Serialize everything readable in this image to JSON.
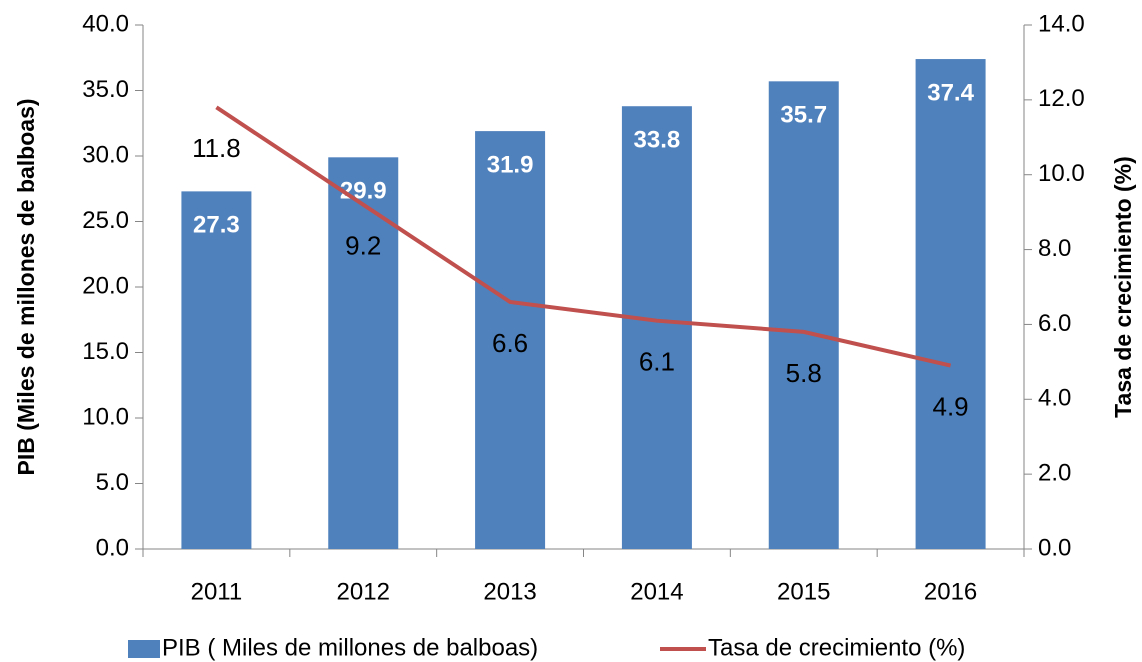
{
  "chart_data": {
    "type": "bar_line",
    "categories": [
      "2011",
      "2012",
      "2013",
      "2014",
      "2015",
      "2016"
    ],
    "y_label": "PIB (Miles de millones de balboas)",
    "y2_label": "Tasa de crecimiento (%)",
    "ylim": [
      0,
      40
    ],
    "yticks": [
      {
        "value": 0,
        "label": "0.0"
      },
      {
        "value": 5,
        "label": "5.0"
      },
      {
        "value": 10,
        "label": "10.0"
      },
      {
        "value": 15,
        "label": "15.0"
      },
      {
        "value": 20,
        "label": "20.0"
      },
      {
        "value": 25,
        "label": "25.0"
      },
      {
        "value": 30,
        "label": "30.0"
      },
      {
        "value": 35,
        "label": "35.0"
      },
      {
        "value": 40,
        "label": "40.0"
      }
    ],
    "y2lim": [
      0,
      14
    ],
    "y2ticks": [
      {
        "value": 0,
        "label": "0.0"
      },
      {
        "value": 2,
        "label": "2.0"
      },
      {
        "value": 4,
        "label": "4.0"
      },
      {
        "value": 6,
        "label": "6.0"
      },
      {
        "value": 8,
        "label": "8.0"
      },
      {
        "value": 10,
        "label": "10.0"
      },
      {
        "value": 12,
        "label": "12.0"
      },
      {
        "value": 14,
        "label": "14.0"
      }
    ],
    "series": [
      {
        "name": "PIB ( Miles de millones de balboas)",
        "type": "bar",
        "color": "#4f81bd",
        "values": [
          27.3,
          29.9,
          31.9,
          33.8,
          35.7,
          37.4
        ]
      },
      {
        "name": "Tasa de crecimiento (%)",
        "type": "line",
        "axis": "y2",
        "color": "#c0504d",
        "values": [
          11.8,
          9.2,
          6.6,
          6.1,
          5.8,
          4.9
        ]
      }
    ]
  }
}
